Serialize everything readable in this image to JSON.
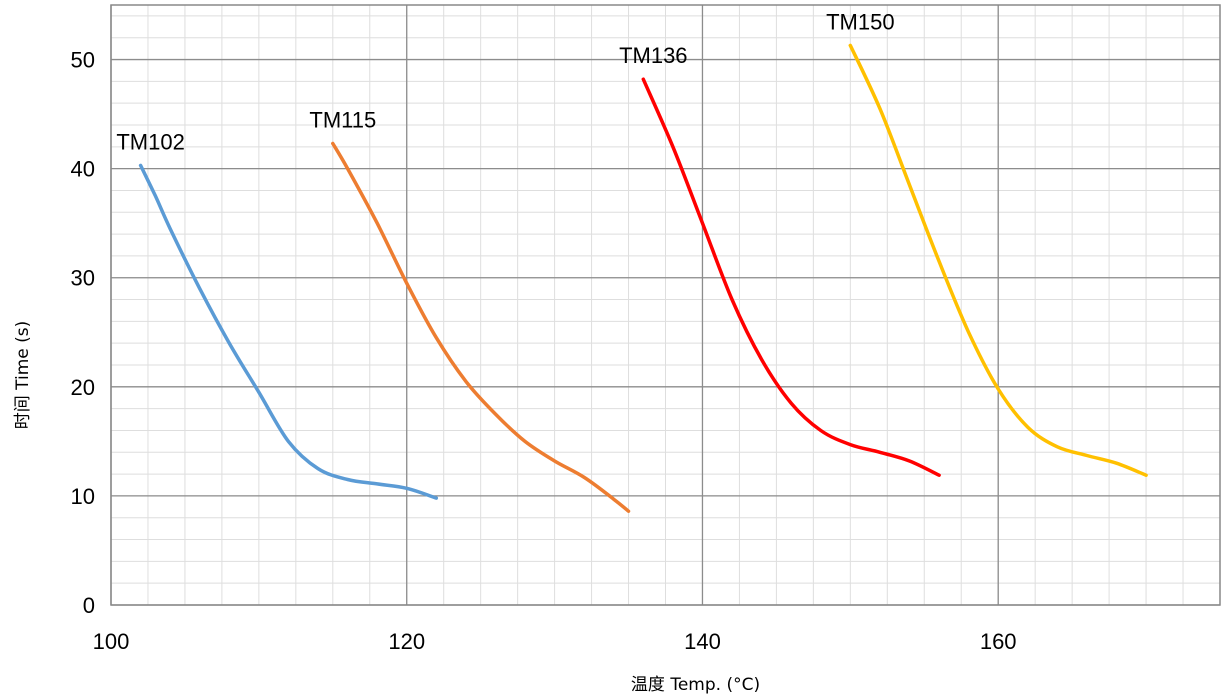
{
  "chart_data": {
    "type": "line",
    "xlabel": "温度 Temp. (°C)",
    "ylabel": "时间 Time (s)",
    "xlim": [
      100,
      175
    ],
    "ylim": [
      0,
      55
    ],
    "x_ticks": [
      100,
      120,
      140,
      160
    ],
    "y_ticks": [
      0,
      10,
      20,
      30,
      40,
      50
    ],
    "minor_x_step": 2.5,
    "minor_y_step": 2,
    "grid": true,
    "legend": "none (series labeled at curve tops)",
    "series": [
      {
        "name": "TM102",
        "color": "#5B9BD5",
        "points": [
          [
            102,
            40.3
          ],
          [
            103,
            37.5
          ],
          [
            104,
            34.5
          ],
          [
            106,
            29
          ],
          [
            108,
            24
          ],
          [
            110,
            19.5
          ],
          [
            112,
            15
          ],
          [
            114,
            12.5
          ],
          [
            116,
            11.5
          ],
          [
            118,
            11.1
          ],
          [
            120,
            10.7
          ],
          [
            122,
            9.8
          ]
        ]
      },
      {
        "name": "TM115",
        "color": "#ED7D31",
        "points": [
          [
            115,
            42.3
          ],
          [
            116,
            40
          ],
          [
            118,
            35
          ],
          [
            120,
            29.5
          ],
          [
            122,
            24.5
          ],
          [
            124,
            20.5
          ],
          [
            126,
            17.5
          ],
          [
            128,
            15
          ],
          [
            130,
            13.2
          ],
          [
            132,
            11.7
          ],
          [
            134,
            9.7
          ],
          [
            135,
            8.6
          ]
        ]
      },
      {
        "name": "TM136",
        "color": "#FF0000",
        "points": [
          [
            136,
            48.2
          ],
          [
            138,
            42
          ],
          [
            140,
            35
          ],
          [
            142,
            28
          ],
          [
            144,
            22.5
          ],
          [
            146,
            18.5
          ],
          [
            148,
            16
          ],
          [
            150,
            14.7
          ],
          [
            152,
            14
          ],
          [
            154,
            13.2
          ],
          [
            156,
            11.9
          ]
        ]
      },
      {
        "name": "TM150",
        "color": "#FFC000",
        "points": [
          [
            150,
            51.3
          ],
          [
            152,
            45.5
          ],
          [
            154,
            38.5
          ],
          [
            156,
            31.5
          ],
          [
            158,
            25
          ],
          [
            160,
            19.8
          ],
          [
            162,
            16.3
          ],
          [
            164,
            14.5
          ],
          [
            166,
            13.7
          ],
          [
            168,
            13
          ],
          [
            170,
            11.9
          ]
        ]
      }
    ]
  }
}
